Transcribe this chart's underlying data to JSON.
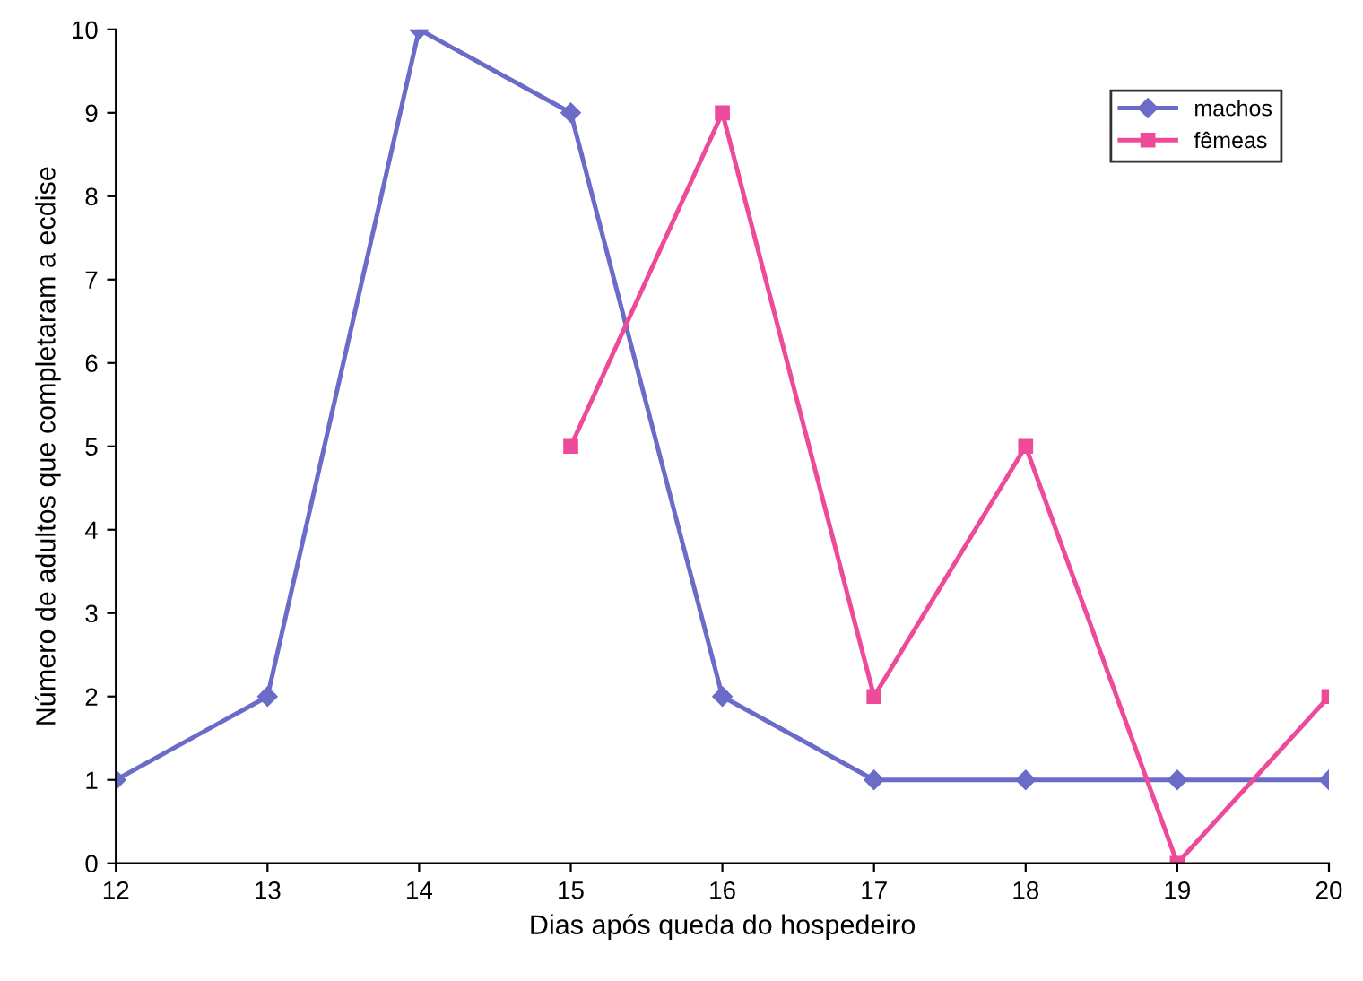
{
  "chart_data": {
    "type": "line",
    "xlabel": "Dias após queda do hospedeiro",
    "ylabel": "Número de adultos que completaram a ecdise",
    "xlim": [
      12,
      20
    ],
    "xticks": [
      12,
      13,
      14,
      15,
      16,
      17,
      18,
      19,
      20
    ],
    "ylim": [
      0,
      10
    ],
    "yticks": [
      0,
      1,
      2,
      3,
      4,
      5,
      6,
      7,
      8,
      9,
      10
    ],
    "grid": false,
    "legend": "top right",
    "series": [
      {
        "name": "machos",
        "color": "#6b6bc8",
        "marker": "diamond",
        "x": [
          12,
          13,
          14,
          15,
          16,
          17,
          18,
          19,
          20
        ],
        "values": [
          1,
          2,
          10,
          9,
          2,
          1,
          1,
          1,
          1
        ]
      },
      {
        "name": "fêmeas",
        "color": "#ee4a9a",
        "marker": "square",
        "x": [
          15,
          16,
          17,
          18,
          19,
          20
        ],
        "values": [
          5,
          9,
          2,
          5,
          0,
          2
        ]
      }
    ]
  }
}
